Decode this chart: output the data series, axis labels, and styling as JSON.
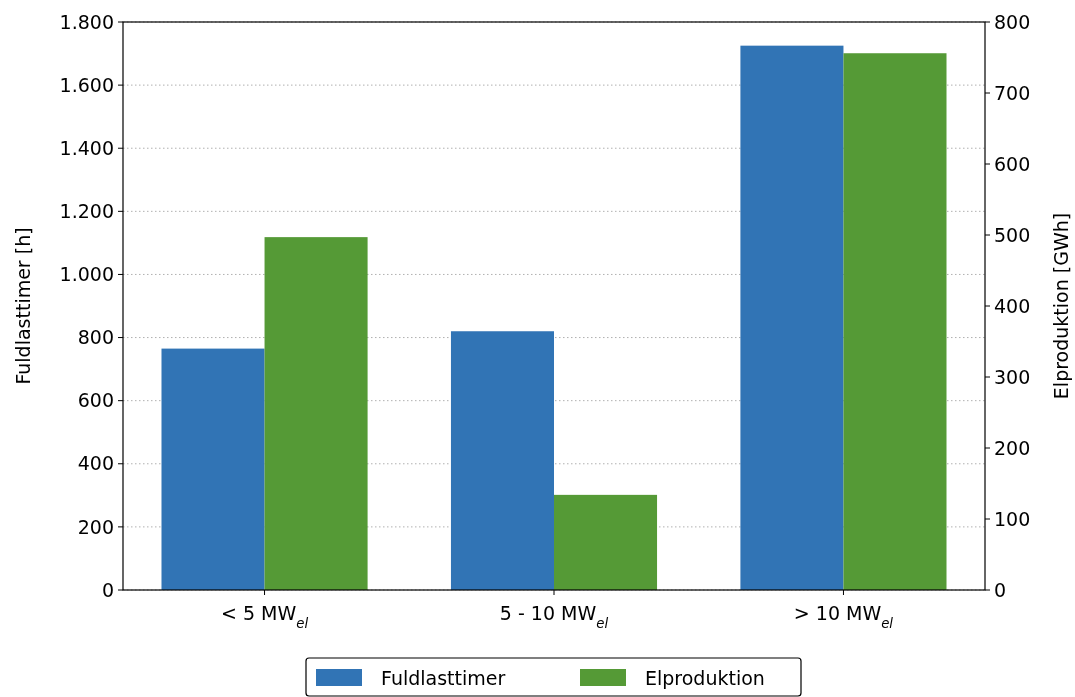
{
  "chart_data": {
    "type": "bar",
    "categories": [
      "< 5 MW$_{el}$",
      "5 - 10 MW$_{el}$",
      "> 10 MW$_{el}$"
    ],
    "ylabel": "Fuldlasttimer [h]",
    "y2label": "Elproduktion [GWh]",
    "series": [
      {
        "name": "Fuldlasttimer",
        "color": "#3174b5",
        "values": [
          765,
          820,
          1725
        ]
      },
      {
        "name": "Elproduktion",
        "color": "#559a36",
        "values": [
          497,
          134,
          756
        ],
        "axis": "y2"
      }
    ],
    "ylim": [
      0,
      1800
    ],
    "yticks": [
      0,
      200,
      400,
      600,
      800,
      {
        "value": 1000,
        "label": "1.000"
      },
      {
        "value": 1200,
        "label": "1.200"
      },
      {
        "value": 1400,
        "label": "1.400"
      },
      {
        "value": 1600,
        "label": "1.600"
      },
      {
        "value": 1800,
        "label": "1.800"
      }
    ],
    "y2lim": [
      0,
      800
    ],
    "y2ticks": [
      0,
      100,
      200,
      300,
      400,
      500,
      600,
      700,
      800
    ],
    "grid": "y",
    "legend": "bottom"
  }
}
